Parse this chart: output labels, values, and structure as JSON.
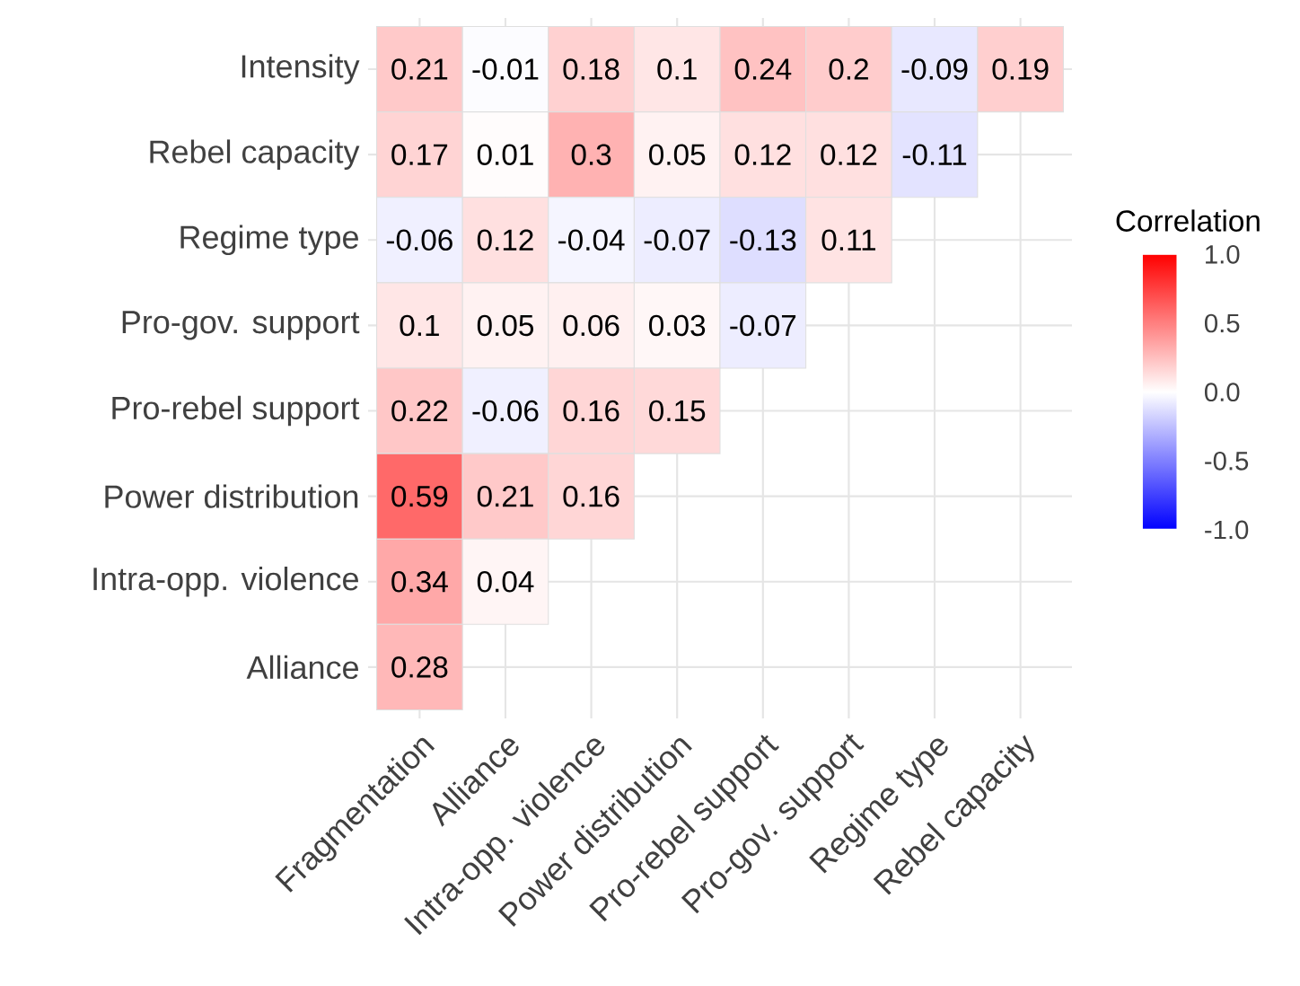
{
  "chart_data": {
    "type": "heatmap",
    "categories": [
      "Fragmentation",
      "Alliance",
      "Intra-opp. violence",
      "Power distribution",
      "Pro-rebel support",
      "Pro-gov. support",
      "Regime type",
      "Rebel capacity"
    ],
    "y_categories": [
      "Intensity",
      "Rebel capacity",
      "Regime type",
      "Pro-gov. support",
      "Pro-rebel support",
      "Power distribution",
      "Intra-opp. violence",
      "Alliance"
    ],
    "cells": [
      [
        0.21,
        -0.01,
        0.18,
        0.1,
        0.24,
        0.2,
        -0.09,
        0.19
      ],
      [
        0.17,
        0.01,
        0.3,
        0.05,
        0.12,
        0.12,
        -0.11,
        null
      ],
      [
        -0.06,
        0.12,
        -0.04,
        -0.07,
        -0.13,
        0.11,
        null,
        null
      ],
      [
        0.1,
        0.05,
        0.06,
        0.03,
        -0.07,
        null,
        null,
        null
      ],
      [
        0.22,
        -0.06,
        0.16,
        0.15,
        null,
        null,
        null,
        null
      ],
      [
        0.59,
        0.21,
        0.16,
        null,
        null,
        null,
        null,
        null
      ],
      [
        0.34,
        0.04,
        null,
        null,
        null,
        null,
        null,
        null
      ],
      [
        0.28,
        null,
        null,
        null,
        null,
        null,
        null,
        null
      ]
    ],
    "clabel": "Correlation",
    "clim": [
      -1,
      1
    ],
    "cticks": [
      {
        "value": 1,
        "label": "1.0"
      },
      {
        "value": 0.5,
        "label": "0.5"
      },
      {
        "value": 0,
        "label": "0.0"
      },
      {
        "value": -0.5,
        "label": "-0.5"
      },
      {
        "value": -1,
        "label": "-1.0"
      }
    ],
    "data_labels": true,
    "grid": true
  }
}
